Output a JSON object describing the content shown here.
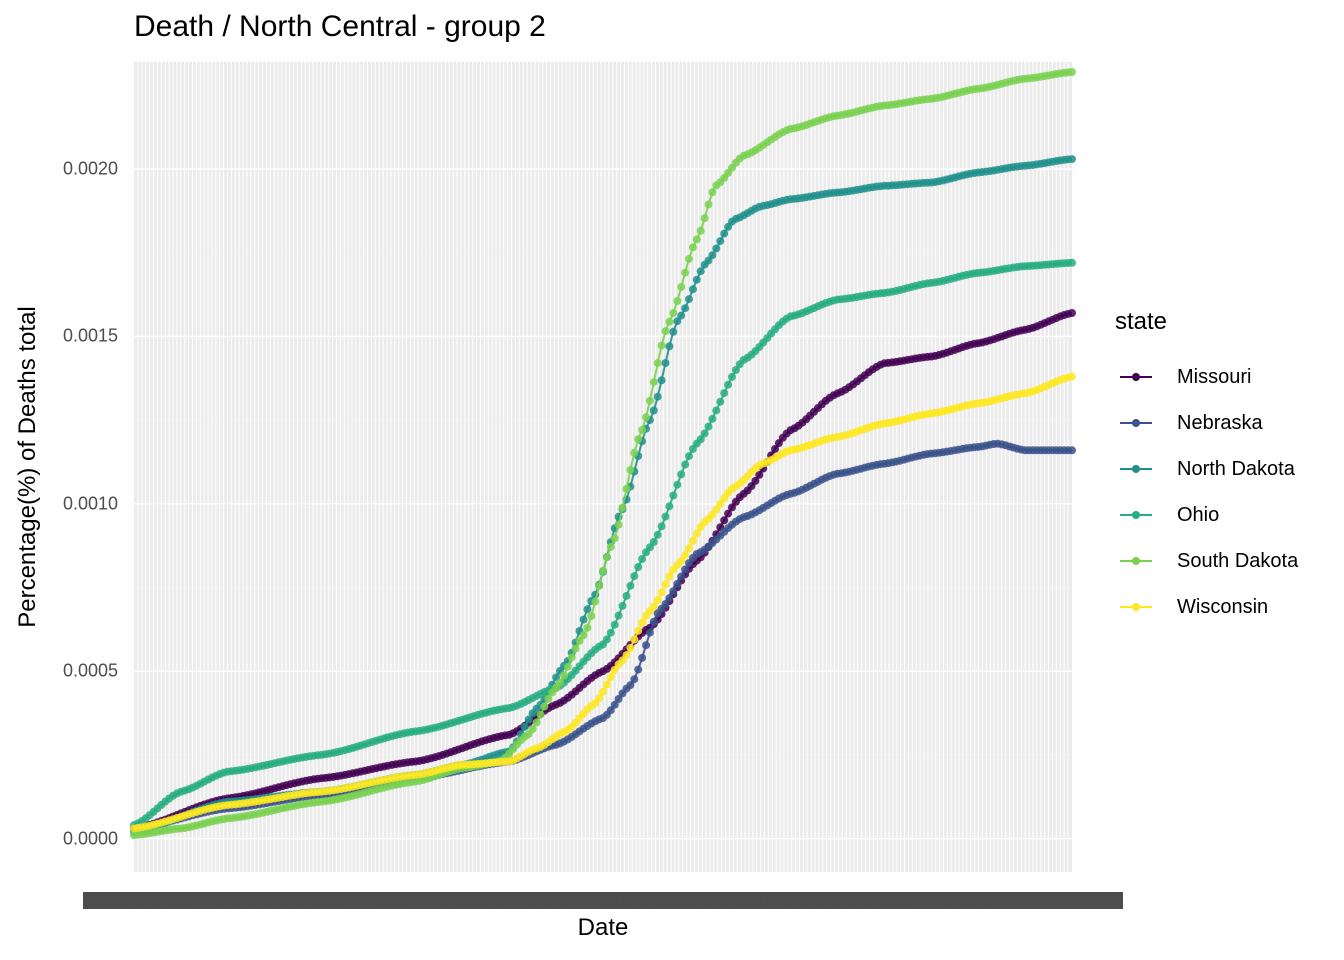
{
  "chart_data": {
    "type": "line",
    "title": "Death / North Central - group 2",
    "xlabel": "Date",
    "ylabel": "Percentage(%) of Deaths total",
    "ylim": [
      -0.0001,
      0.00232
    ],
    "xlim": [
      0,
      100
    ],
    "y_ticks": [
      {
        "value": 0.0,
        "label": "0.0000"
      },
      {
        "value": 0.0005,
        "label": "0.0005"
      },
      {
        "value": 0.001,
        "label": "0.0010"
      },
      {
        "value": 0.0015,
        "label": "0.0015"
      },
      {
        "value": 0.002,
        "label": "0.0020"
      }
    ],
    "x_tick_count": 240,
    "legend_title": "state",
    "legend_position": "right",
    "grid": true,
    "series": [
      {
        "name": "Missouri",
        "color": "#440154",
        "x": [
          0,
          10,
          20,
          30,
          40,
          45,
          50,
          55,
          60,
          65,
          70,
          75,
          80,
          85,
          90,
          95,
          100
        ],
        "y": [
          3e-05,
          0.00012,
          0.00018,
          0.00023,
          0.00031,
          0.0004,
          0.0005,
          0.00063,
          0.00083,
          0.00103,
          0.00122,
          0.00133,
          0.00142,
          0.00144,
          0.00148,
          0.00152,
          0.00157
        ]
      },
      {
        "name": "Nebraska",
        "color": "#3B528B",
        "x": [
          0,
          10,
          20,
          30,
          40,
          45,
          50,
          53,
          56,
          60,
          65,
          70,
          75,
          80,
          85,
          90,
          92,
          95,
          100
        ],
        "y": [
          3e-05,
          9e-05,
          0.00013,
          0.00018,
          0.00023,
          0.00028,
          0.00036,
          0.00046,
          0.00068,
          0.00085,
          0.00096,
          0.00103,
          0.00109,
          0.00112,
          0.00115,
          0.00117,
          0.00118,
          0.00116,
          0.00116
        ]
      },
      {
        "name": "North Dakota",
        "color": "#21908C",
        "x": [
          0,
          10,
          20,
          30,
          35,
          40,
          43,
          46,
          49,
          52,
          55,
          58,
          61,
          64,
          67,
          70,
          75,
          80,
          85,
          90,
          95,
          100
        ],
        "y": [
          2e-05,
          0.00011,
          0.00014,
          0.00019,
          0.00022,
          0.00026,
          0.00039,
          0.00052,
          0.00072,
          0.00098,
          0.00125,
          0.00155,
          0.00172,
          0.00185,
          0.00189,
          0.00191,
          0.00193,
          0.00195,
          0.00196,
          0.00199,
          0.00201,
          0.00203
        ]
      },
      {
        "name": "Ohio",
        "color": "#27AD81",
        "x": [
          0,
          5,
          10,
          20,
          30,
          40,
          45,
          50,
          55,
          60,
          65,
          70,
          75,
          80,
          85,
          90,
          95,
          100
        ],
        "y": [
          4e-05,
          0.00014,
          0.0002,
          0.00025,
          0.00032,
          0.00039,
          0.00045,
          0.00058,
          0.00087,
          0.00118,
          0.00143,
          0.00156,
          0.00161,
          0.00163,
          0.00166,
          0.00169,
          0.00171,
          0.00172
        ]
      },
      {
        "name": "South Dakota",
        "color": "#7AD151",
        "x": [
          0,
          5,
          10,
          20,
          30,
          35,
          39,
          42,
          45,
          48,
          51,
          54,
          57,
          60,
          62,
          65,
          70,
          75,
          80,
          85,
          90,
          95,
          100
        ],
        "y": [
          1e-05,
          3e-05,
          6e-05,
          0.00011,
          0.00017,
          0.00021,
          0.00023,
          0.00031,
          0.00045,
          0.00061,
          0.00088,
          0.00121,
          0.00154,
          0.00179,
          0.00195,
          0.00204,
          0.00212,
          0.00216,
          0.00219,
          0.00221,
          0.00224,
          0.00227,
          0.00229
        ]
      },
      {
        "name": "Wisconsin",
        "color": "#FDE725",
        "x": [
          0,
          10,
          20,
          30,
          35,
          40,
          43,
          46,
          49,
          52,
          55,
          58,
          61,
          64,
          67,
          70,
          75,
          80,
          85,
          90,
          95,
          100
        ],
        "y": [
          3e-05,
          0.0001,
          0.00014,
          0.00019,
          0.00022,
          0.00023,
          0.00027,
          0.00032,
          0.0004,
          0.00053,
          0.00068,
          0.00082,
          0.00095,
          0.00105,
          0.00112,
          0.00116,
          0.0012,
          0.00124,
          0.00127,
          0.0013,
          0.00133,
          0.00138
        ]
      }
    ]
  }
}
